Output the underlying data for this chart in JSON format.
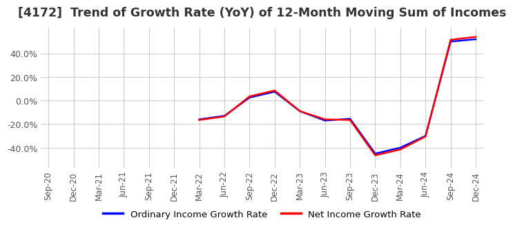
{
  "title": "[4172]  Trend of Growth Rate (YoY) of 12-Month Moving Sum of Incomes",
  "title_fontsize": 12.5,
  "ylim": [
    -57,
    62
  ],
  "yticks": [
    -40.0,
    -20.0,
    0.0,
    20.0,
    40.0
  ],
  "background_color": "#ffffff",
  "grid_color": "#cccccc",
  "legend_labels": [
    "Ordinary Income Growth Rate",
    "Net Income Growth Rate"
  ],
  "legend_colors": [
    "#0000ff",
    "#ff0000"
  ],
  "x_labels": [
    "Sep-20",
    "Dec-20",
    "Mar-21",
    "Jun-21",
    "Sep-21",
    "Dec-21",
    "Mar-22",
    "Jun-22",
    "Sep-22",
    "Dec-22",
    "Mar-23",
    "Jun-23",
    "Sep-23",
    "Dec-23",
    "Mar-24",
    "Jun-24",
    "Sep-24",
    "Dec-24"
  ],
  "ordinary_income": [
    null,
    null,
    null,
    null,
    null,
    null,
    -16.0,
    -13.0,
    2.5,
    7.5,
    -9.0,
    -17.0,
    -15.5,
    -45.0,
    -40.0,
    -30.0,
    50.0,
    52.0
  ],
  "net_income": [
    null,
    null,
    null,
    null,
    null,
    null,
    -16.5,
    -13.5,
    3.5,
    8.5,
    -9.0,
    -16.0,
    -16.5,
    -46.5,
    -41.5,
    -30.5,
    51.5,
    54.0
  ]
}
